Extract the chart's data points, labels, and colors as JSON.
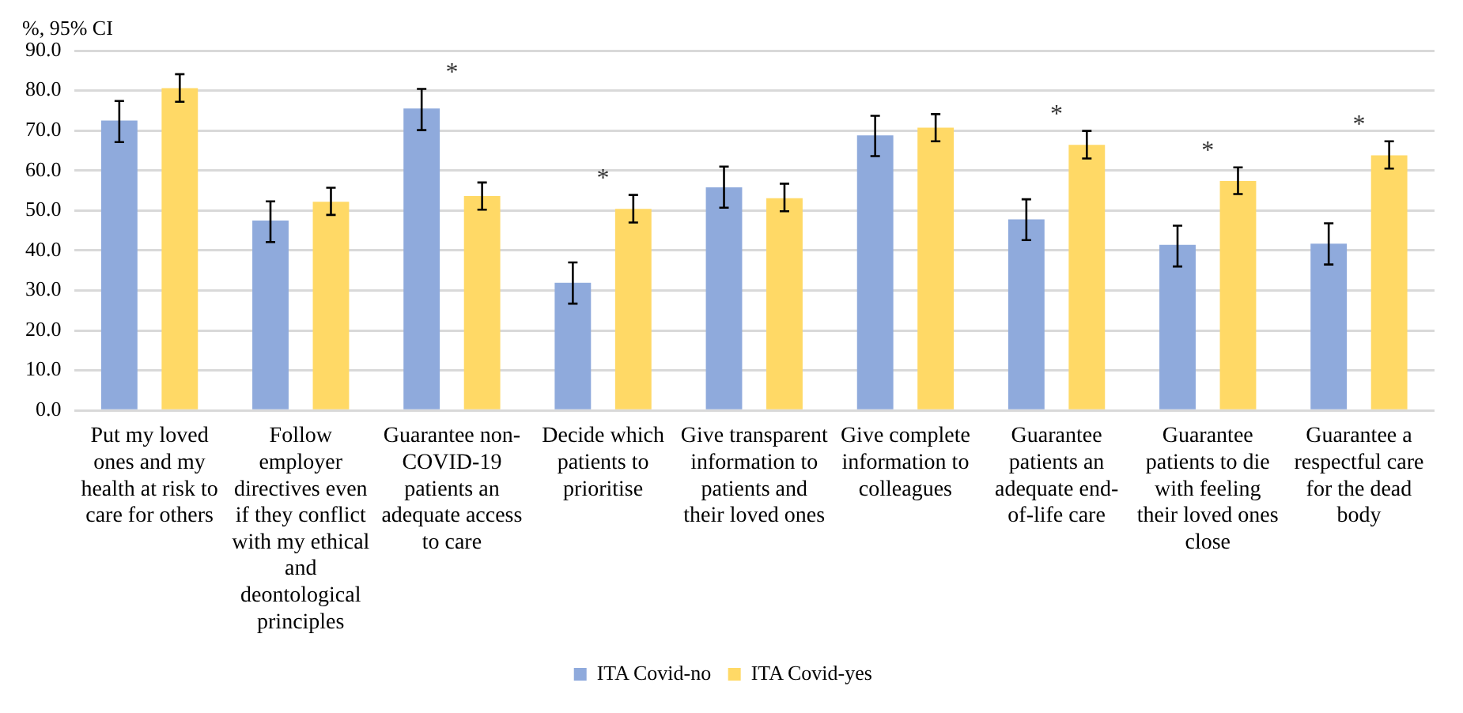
{
  "chart_data": {
    "type": "bar",
    "ylabel": "%, 95% CI",
    "categories": [
      "Put my loved ones and my health at risk to care for others",
      "Follow employer directives even if they conflict with my ethical and deontological principles",
      "Guarantee non-COVID-19 patients an adequate access to care",
      "Decide which patients to prioritise",
      "Give transparent information to patients and their loved ones",
      "Give complete information to colleagues",
      "Guarantee patients an adequate end-of-life care",
      "Guarantee patients to die with feeling their loved ones close",
      "Guarantee a respectful care for the dead body"
    ],
    "series": [
      {
        "name": "ITA Covid-no",
        "color": "#8faadc",
        "values": [
          72.5,
          47.5,
          75.5,
          31.9,
          55.8,
          68.8,
          47.8,
          41.4,
          41.7
        ],
        "errors": [
          [
            67.1,
            77.4
          ],
          [
            42.1,
            52.3
          ],
          [
            70.1,
            80.4
          ],
          [
            26.7,
            37.0
          ],
          [
            50.7,
            61.0
          ],
          [
            63.6,
            73.7
          ],
          [
            42.6,
            52.8
          ],
          [
            36.0,
            46.2
          ],
          [
            36.5,
            46.8
          ]
        ]
      },
      {
        "name": "ITA Covid-yes",
        "color": "#ffd966",
        "values": [
          80.6,
          52.2,
          53.6,
          50.4,
          53.1,
          70.7,
          66.4,
          57.4,
          63.8
        ],
        "errors": [
          [
            77.2,
            84.1
          ],
          [
            48.9,
            55.7
          ],
          [
            50.2,
            57.0
          ],
          [
            47.0,
            53.9
          ],
          [
            49.8,
            56.7
          ],
          [
            67.3,
            74.1
          ],
          [
            63.0,
            69.9
          ],
          [
            54.1,
            60.8
          ],
          [
            60.5,
            67.3
          ]
        ]
      }
    ],
    "ylim": [
      0,
      90
    ],
    "yticks": [
      {
        "value": 0,
        "label": "0.0"
      },
      {
        "value": 10,
        "label": "10.0"
      },
      {
        "value": 20,
        "label": "20.0"
      },
      {
        "value": 30,
        "label": "30.0"
      },
      {
        "value": 40,
        "label": "40.0"
      },
      {
        "value": 50,
        "label": "50.0"
      },
      {
        "value": 60,
        "label": "60.0"
      },
      {
        "value": 70,
        "label": "70.0"
      },
      {
        "value": 80,
        "label": "80.0"
      },
      {
        "value": 90,
        "label": "90.0"
      }
    ],
    "grid": "y",
    "legend": "bottom",
    "annotations": [
      "*",
      "*",
      "*",
      "*",
      "*"
    ]
  }
}
